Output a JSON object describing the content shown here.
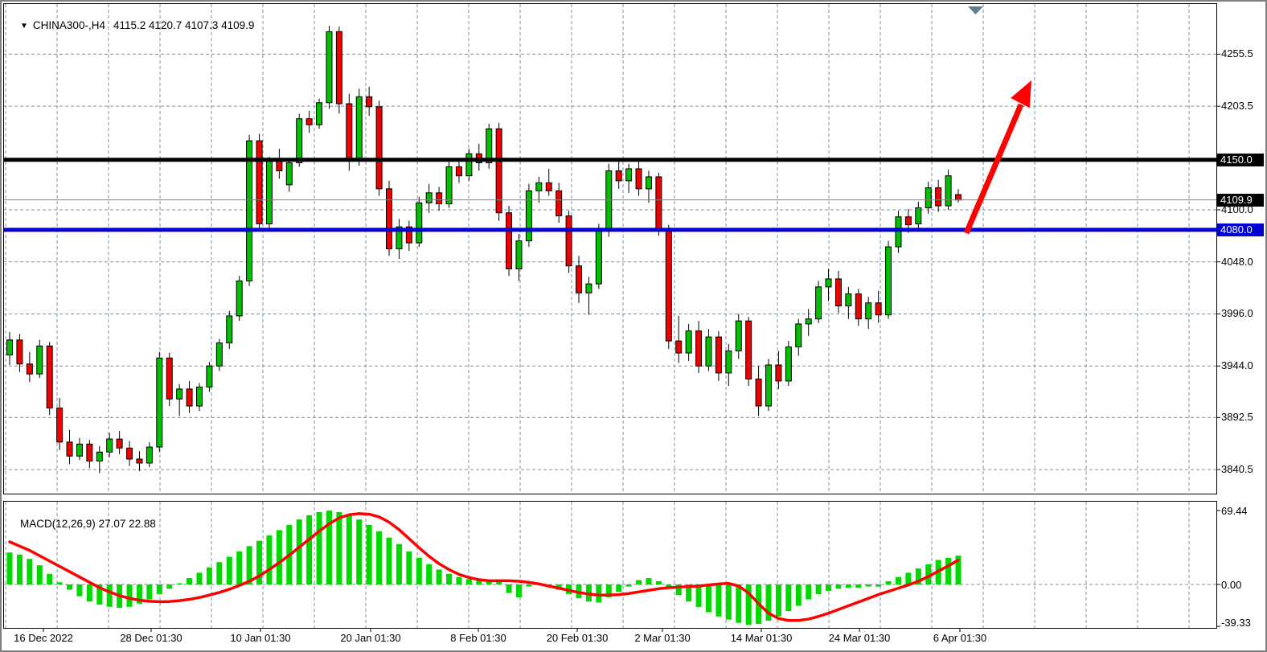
{
  "header": {
    "dropdown_icon": "▼",
    "symbol_period": "CHINA300-,H4",
    "ohlc": "4115.2 4120.7 4107.3 4109.9"
  },
  "indicator": {
    "name": "MACD(12,26,9)",
    "macd_value": "27.07",
    "signal_value": "22.88"
  },
  "colors": {
    "up_fill": "#00C000",
    "down_fill": "#F00000",
    "candle_outline": "#000000",
    "wick": "#000000",
    "macd_bar": "#00D800",
    "signal_line": "#FF0000",
    "grid": "#7E91A3",
    "resistance_line": "#000000",
    "support_line": "#0000D2",
    "current_price_line": "#808080",
    "arrow": "#FF0000",
    "shift_marker": "#5E7F92",
    "badge_black_bg": "#000000",
    "badge_blue_bg": "#0000D2",
    "panel_border": "#000000",
    "background": "#FFFFFF"
  },
  "price_axis": {
    "grid_labels": [
      {
        "text": "4255.5",
        "value": 4255.5
      },
      {
        "text": "4203.5",
        "value": 4203.5
      },
      {
        "text": "4100.0",
        "value": 4100.0
      },
      {
        "text": "4048.0",
        "value": 4048.0
      },
      {
        "text": "3996.0",
        "value": 3996.0
      },
      {
        "text": "3944.0",
        "value": 3944.0
      },
      {
        "text": "3892.5",
        "value": 3892.5
      },
      {
        "text": "3840.5",
        "value": 3840.5
      }
    ]
  },
  "macd_axis": {
    "labels": [
      {
        "text": "69.44",
        "value": 69.44
      },
      {
        "text": "0.00",
        "value": 0
      },
      {
        "text": "-39.33",
        "value": -39.33
      }
    ]
  },
  "time_axis": {
    "labels": [
      {
        "text": "16 Dec 2022",
        "x": 52
      },
      {
        "text": "28 Dec 01:30",
        "x": 186
      },
      {
        "text": "10 Jan 01:30",
        "x": 322
      },
      {
        "text": "20 Jan 01:30",
        "x": 459
      },
      {
        "text": "8 Feb 01:30",
        "x": 593
      },
      {
        "text": "20 Feb 01:30",
        "x": 716
      },
      {
        "text": "2 Mar 01:30",
        "x": 822
      },
      {
        "text": "14 Mar 01:30",
        "x": 945
      },
      {
        "text": "24 Mar 01:30",
        "x": 1067
      },
      {
        "text": "6 Apr 01:30",
        "x": 1192
      }
    ]
  },
  "chart_data": [
    {
      "type": "candlestick",
      "title": "CHINA300-,H4",
      "last_bar": {
        "open": 4115.2,
        "high": 4120.7,
        "low": 4107.3,
        "close": 4109.9
      },
      "ylim": [
        3830,
        4290
      ],
      "grid": "dashed",
      "hlines": [
        {
          "value": 4150.0,
          "label": "4150.0",
          "color": "#000000",
          "width": 5,
          "badge_bg": "#000000"
        },
        {
          "value": 4109.9,
          "label": "4109.9",
          "color": "#808080",
          "width": 1,
          "badge_bg": "#000000"
        },
        {
          "value": 4080.0,
          "label": "4080.0",
          "color": "#0000D2",
          "width": 5,
          "badge_bg": "#0000D2"
        }
      ],
      "annotations": [
        {
          "type": "trend-arrow-up",
          "color": "#FF0000",
          "from_price": 4080,
          "to_price": 4232
        }
      ],
      "candles": [
        [
          3955,
          3978,
          3945,
          3970
        ],
        [
          3970,
          3976,
          3938,
          3946
        ],
        [
          3946,
          3958,
          3928,
          3936
        ],
        [
          3936,
          3970,
          3932,
          3964
        ],
        [
          3964,
          3968,
          3895,
          3902
        ],
        [
          3902,
          3912,
          3860,
          3868
        ],
        [
          3868,
          3880,
          3846,
          3854
        ],
        [
          3854,
          3872,
          3850,
          3866
        ],
        [
          3866,
          3870,
          3842,
          3849
        ],
        [
          3849,
          3864,
          3837,
          3858
        ],
        [
          3858,
          3877,
          3853,
          3871
        ],
        [
          3871,
          3879,
          3856,
          3862
        ],
        [
          3862,
          3869,
          3844,
          3851
        ],
        [
          3851,
          3859,
          3839,
          3847
        ],
        [
          3847,
          3868,
          3843,
          3863
        ],
        [
          3863,
          3958,
          3858,
          3952
        ],
        [
          3952,
          3957,
          3904,
          3911
        ],
        [
          3911,
          3926,
          3894,
          3921
        ],
        [
          3921,
          3929,
          3897,
          3904
        ],
        [
          3904,
          3927,
          3899,
          3923
        ],
        [
          3923,
          3948,
          3918,
          3944
        ],
        [
          3944,
          3971,
          3939,
          3967
        ],
        [
          3967,
          3999,
          3961,
          3994
        ],
        [
          3994,
          4034,
          3989,
          4029
        ],
        [
          4029,
          4175,
          4024,
          4169
        ],
        [
          4169,
          4176,
          4079,
          4086
        ],
        [
          4086,
          4153,
          4081,
          4149
        ],
        [
          4149,
          4161,
          4131,
          4139
        ],
        [
          4125,
          4152,
          4118,
          4147
        ],
        [
          4147,
          4196,
          4143,
          4191
        ],
        [
          4191,
          4199,
          4177,
          4185
        ],
        [
          4185,
          4211,
          4181,
          4207
        ],
        [
          4207,
          4284,
          4201,
          4278
        ],
        [
          4278,
          4283,
          4196,
          4206
        ],
        [
          4206,
          4216,
          4139,
          4149
        ],
        [
          4149,
          4221,
          4144,
          4213
        ],
        [
          4213,
          4223,
          4194,
          4203
        ],
        [
          4203,
          4209,
          4114,
          4121
        ],
        [
          4121,
          4129,
          4054,
          4061
        ],
        [
          4061,
          4091,
          4051,
          4083
        ],
        [
          4083,
          4089,
          4059,
          4067
        ],
        [
          4067,
          4113,
          4063,
          4107
        ],
        [
          4107,
          4126,
          4097,
          4117
        ],
        [
          4117,
          4123,
          4099,
          4106
        ],
        [
          4106,
          4149,
          4102,
          4143
        ],
        [
          4143,
          4151,
          4127,
          4134
        ],
        [
          4134,
          4161,
          4129,
          4156
        ],
        [
          4156,
          4166,
          4139,
          4147
        ],
        [
          4147,
          4186,
          4141,
          4181
        ],
        [
          4181,
          4187,
          4089,
          4097
        ],
        [
          4097,
          4104,
          4034,
          4041
        ],
        [
          4041,
          4076,
          4029,
          4069
        ],
        [
          4069,
          4126,
          4063,
          4119
        ],
        [
          4119,
          4133,
          4107,
          4127
        ],
        [
          4127,
          4141,
          4114,
          4119
        ],
        [
          4119,
          4127,
          4087,
          4094
        ],
        [
          4094,
          4099,
          4037,
          4044
        ],
        [
          4044,
          4054,
          4007,
          4017
        ],
        [
          4017,
          4033,
          3995,
          4026
        ],
        [
          4026,
          4086,
          4021,
          4079
        ],
        [
          4079,
          4146,
          4073,
          4139
        ],
        [
          4139,
          4151,
          4121,
          4129
        ],
        [
          4129,
          4146,
          4117,
          4141
        ],
        [
          4141,
          4149,
          4114,
          4121
        ],
        [
          4121,
          4139,
          4107,
          4133
        ],
        [
          4133,
          4137,
          4074,
          4081
        ],
        [
          4081,
          4085,
          3961,
          3969
        ],
        [
          3969,
          3994,
          3947,
          3957
        ],
        [
          3957,
          3986,
          3949,
          3979
        ],
        [
          3979,
          3989,
          3937,
          3944
        ],
        [
          3944,
          3981,
          3939,
          3973
        ],
        [
          3973,
          3979,
          3929,
          3937
        ],
        [
          3937,
          3966,
          3924,
          3959
        ],
        [
          3959,
          3996,
          3951,
          3989
        ],
        [
          3989,
          3993,
          3924,
          3931
        ],
        [
          3931,
          3944,
          3894,
          3904
        ],
        [
          3904,
          3951,
          3899,
          3945
        ],
        [
          3945,
          3959,
          3921,
          3929
        ],
        [
          3929,
          3969,
          3924,
          3963
        ],
        [
          3963,
          3991,
          3954,
          3986
        ],
        [
          3986,
          4001,
          3974,
          3991
        ],
        [
          3991,
          4029,
          3987,
          4023
        ],
        [
          4023,
          4041,
          4009,
          4031
        ],
        [
          4031,
          4039,
          3997,
          4004
        ],
        [
          4004,
          4023,
          3991,
          4016
        ],
        [
          4016,
          4021,
          3984,
          3991
        ],
        [
          3991,
          4013,
          3981,
          4007
        ],
        [
          4007,
          4019,
          3987,
          3995
        ],
        [
          3995,
          4069,
          3991,
          4063
        ],
        [
          4063,
          4099,
          4057,
          4093
        ],
        [
          4093,
          4101,
          4077,
          4085
        ],
        [
          4086,
          4108,
          4082,
          4102
        ],
        [
          4102,
          4128,
          4096,
          4122
        ],
        [
          4122,
          4130,
          4098,
          4104
        ],
        [
          4104,
          4140,
          4100,
          4134
        ],
        [
          4115.2,
          4120.7,
          4107.3,
          4109.9
        ]
      ]
    },
    {
      "type": "macd_histogram",
      "params": "12,26,9",
      "current": {
        "macd": 27.07,
        "signal": 22.88
      },
      "ylim": [
        -39.33,
        69.44
      ],
      "histogram": [
        30,
        28,
        24,
        18,
        10,
        2,
        -5,
        -11,
        -16,
        -19,
        -21,
        -22,
        -21,
        -18,
        -14,
        -9,
        -4,
        1,
        6,
        11,
        16,
        21,
        26,
        31,
        36,
        41,
        46,
        51,
        56,
        61,
        65,
        68,
        69.4,
        68,
        65,
        61,
        56,
        50,
        44,
        38,
        31,
        25,
        19,
        14,
        10,
        7,
        5,
        4,
        4,
        4,
        -8,
        -12,
        -2,
        1,
        -1,
        -5,
        -9,
        -13,
        -16,
        -17,
        -12,
        -7,
        -2,
        4,
        6,
        3,
        -4,
        -10,
        -16,
        -21,
        -26,
        -30,
        -33,
        -36,
        -38,
        -37,
        -34,
        -30,
        -25,
        -20,
        -14,
        -9,
        -6,
        -4,
        -3,
        -3,
        -2,
        -2,
        3,
        7,
        11,
        15,
        19,
        23,
        25,
        27.07
      ],
      "signal": [
        40,
        36,
        32,
        27,
        22,
        17,
        12,
        7,
        2,
        -3,
        -7,
        -10.5,
        -13,
        -14.8,
        -15.8,
        -16.2,
        -16,
        -15.2,
        -14,
        -12.2,
        -10,
        -7.5,
        -4.5,
        -1,
        3,
        8,
        14,
        20.5,
        27.5,
        35,
        42.5,
        50,
        57,
        62.5,
        65.5,
        66.5,
        66,
        63.5,
        58.5,
        51.5,
        43,
        34.5,
        26.5,
        19.5,
        14,
        9.5,
        6.5,
        4.5,
        3.5,
        3.5,
        3.5,
        3,
        2,
        0.5,
        -1.5,
        -3.5,
        -5.5,
        -7.5,
        -9,
        -10,
        -10,
        -9.5,
        -8.5,
        -7,
        -5.5,
        -4,
        -3,
        -2.5,
        -2,
        -1.5,
        -0.5,
        0.5,
        1,
        -1.5,
        -8,
        -18,
        -27,
        -32,
        -33.8,
        -33.8,
        -32.5,
        -30,
        -27,
        -23.5,
        -20,
        -16.5,
        -13,
        -9.5,
        -6.5,
        -3.5,
        -0.5,
        3,
        7.5,
        12.5,
        17.5,
        22.88
      ]
    }
  ]
}
